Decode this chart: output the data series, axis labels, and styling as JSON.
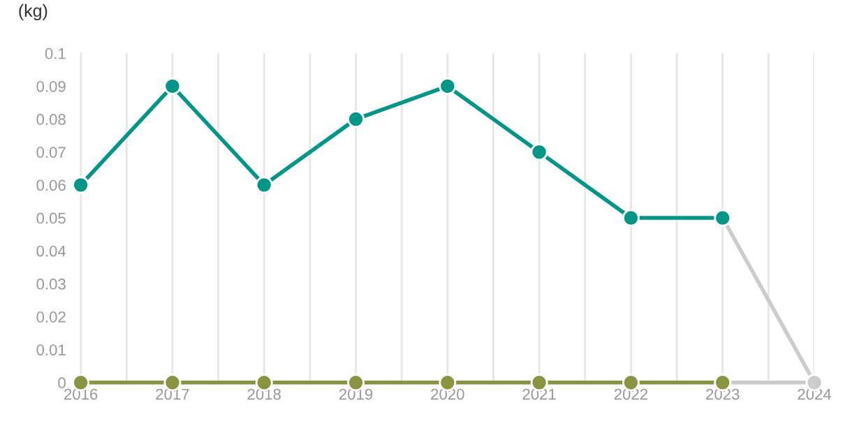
{
  "chart_data": {
    "type": "line",
    "ylabel": "(kg)",
    "xlim": [
      2016,
      2024
    ],
    "xticks": [
      2016,
      {
        "value": 2016.5,
        "label": null
      },
      2017,
      {
        "value": 2017.5,
        "label": null
      },
      2018,
      {
        "value": 2018.5,
        "label": null
      },
      2019,
      {
        "value": 2019.5,
        "label": null
      },
      2020,
      {
        "value": 2020.5,
        "label": null
      },
      2021,
      {
        "value": 2021.5,
        "label": null
      },
      2022,
      {
        "value": 2022.5,
        "label": null
      },
      2023,
      {
        "value": 2023.5,
        "label": null
      },
      2024
    ],
    "ylim": [
      0,
      0.1
    ],
    "yticks": [
      0,
      0.01,
      0.02,
      0.03,
      0.04,
      0.05,
      0.06,
      0.07,
      0.08,
      0.09,
      0.1
    ],
    "grid": "x",
    "legend": false,
    "marker": "circle",
    "line_style": "solid",
    "series": [
      {
        "color": "#cccccc",
        "x": [
          2023,
          2024
        ],
        "values": [
          0.05,
          0
        ]
      },
      {
        "color": "#cccccc",
        "x": [
          2023,
          2024
        ],
        "values": [
          0,
          0
        ]
      },
      {
        "color": "#8a9440",
        "x": [
          2016,
          2017,
          2018,
          2019,
          2020,
          2021,
          2022,
          2023
        ],
        "values": [
          0,
          0,
          0,
          0,
          0,
          0,
          0,
          0
        ]
      },
      {
        "color": "#009688",
        "x": [
          2016,
          2017,
          2018,
          2019,
          2020,
          2021,
          2022,
          2023
        ],
        "values": [
          0.06,
          0.09,
          0.06,
          0.08,
          0.09,
          0.07,
          0.05,
          0.05
        ]
      }
    ]
  }
}
